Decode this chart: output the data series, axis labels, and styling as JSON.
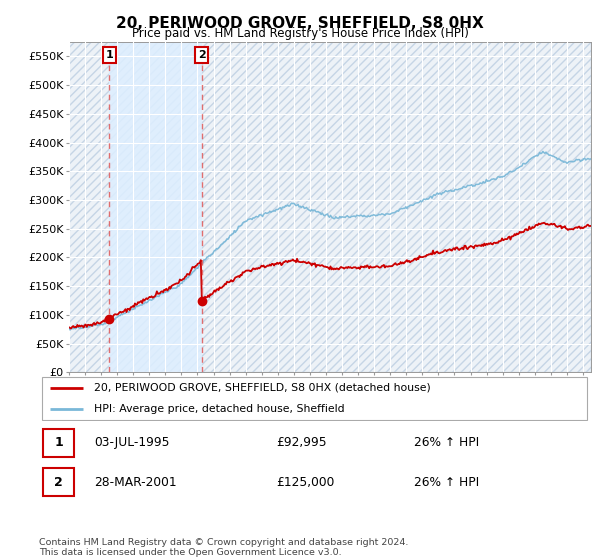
{
  "title": "20, PERIWOOD GROVE, SHEFFIELD, S8 0HX",
  "subtitle": "Price paid vs. HM Land Registry's House Price Index (HPI)",
  "legend_line1": "20, PERIWOOD GROVE, SHEFFIELD, S8 0HX (detached house)",
  "legend_line2": "HPI: Average price, detached house, Sheffield",
  "annotation1_date": "03-JUL-1995",
  "annotation1_price": "£92,995",
  "annotation1_hpi": "26% ↑ HPI",
  "annotation2_date": "28-MAR-2001",
  "annotation2_price": "£125,000",
  "annotation2_hpi": "26% ↑ HPI",
  "footer": "Contains HM Land Registry data © Crown copyright and database right 2024.\nThis data is licensed under the Open Government Licence v3.0.",
  "sale1_year": 1995.5,
  "sale1_value": 92995,
  "sale2_year": 2001.25,
  "sale2_value": 125000,
  "hpi_color": "#7ab8d8",
  "price_color": "#cc0000",
  "dashed_color": "#e06060",
  "shade_color": "#ddeeff",
  "background_color": "#edf2f7",
  "hatch_color": "#c5d5e5",
  "grid_color": "#ffffff",
  "ylim_min": 0,
  "ylim_max": 575000,
  "yticks": [
    0,
    50000,
    100000,
    150000,
    200000,
    250000,
    300000,
    350000,
    400000,
    450000,
    500000,
    550000
  ],
  "xlim_min": 1993,
  "xlim_max": 2025.5
}
